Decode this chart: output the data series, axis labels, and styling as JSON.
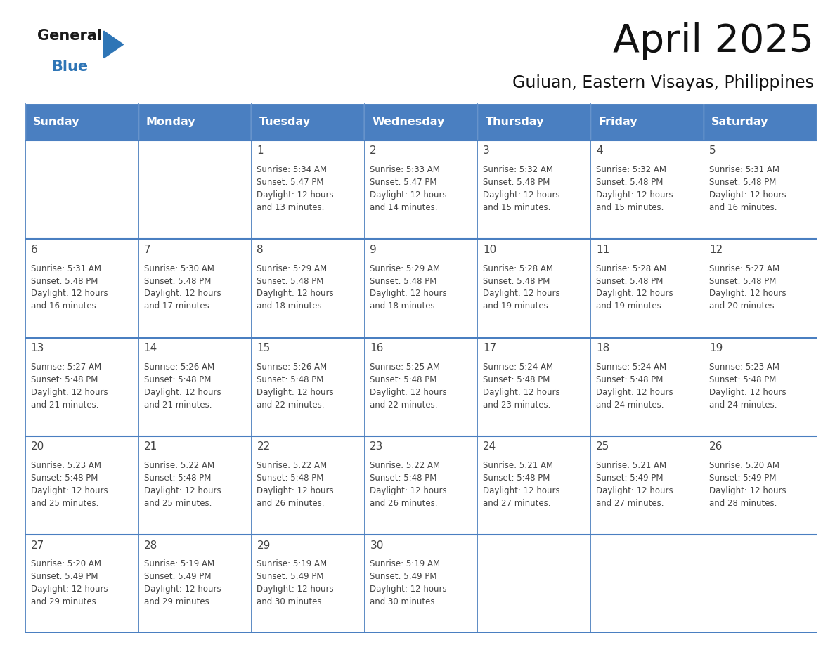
{
  "title": "April 2025",
  "subtitle": "Guiuan, Eastern Visayas, Philippines",
  "days_of_week": [
    "Sunday",
    "Monday",
    "Tuesday",
    "Wednesday",
    "Thursday",
    "Friday",
    "Saturday"
  ],
  "header_bg": "#4a7fc1",
  "header_text": "#FFFFFF",
  "border_color": "#4a7fc1",
  "text_color": "#444444",
  "logo_general_color": "#1a1a1a",
  "logo_blue_color": "#2E75B6",
  "calendar": [
    [
      {
        "day": "",
        "lines": []
      },
      {
        "day": "",
        "lines": []
      },
      {
        "day": "1",
        "lines": [
          "Sunrise: 5:34 AM",
          "Sunset: 5:47 PM",
          "Daylight: 12 hours",
          "and 13 minutes."
        ]
      },
      {
        "day": "2",
        "lines": [
          "Sunrise: 5:33 AM",
          "Sunset: 5:47 PM",
          "Daylight: 12 hours",
          "and 14 minutes."
        ]
      },
      {
        "day": "3",
        "lines": [
          "Sunrise: 5:32 AM",
          "Sunset: 5:48 PM",
          "Daylight: 12 hours",
          "and 15 minutes."
        ]
      },
      {
        "day": "4",
        "lines": [
          "Sunrise: 5:32 AM",
          "Sunset: 5:48 PM",
          "Daylight: 12 hours",
          "and 15 minutes."
        ]
      },
      {
        "day": "5",
        "lines": [
          "Sunrise: 5:31 AM",
          "Sunset: 5:48 PM",
          "Daylight: 12 hours",
          "and 16 minutes."
        ]
      }
    ],
    [
      {
        "day": "6",
        "lines": [
          "Sunrise: 5:31 AM",
          "Sunset: 5:48 PM",
          "Daylight: 12 hours",
          "and 16 minutes."
        ]
      },
      {
        "day": "7",
        "lines": [
          "Sunrise: 5:30 AM",
          "Sunset: 5:48 PM",
          "Daylight: 12 hours",
          "and 17 minutes."
        ]
      },
      {
        "day": "8",
        "lines": [
          "Sunrise: 5:29 AM",
          "Sunset: 5:48 PM",
          "Daylight: 12 hours",
          "and 18 minutes."
        ]
      },
      {
        "day": "9",
        "lines": [
          "Sunrise: 5:29 AM",
          "Sunset: 5:48 PM",
          "Daylight: 12 hours",
          "and 18 minutes."
        ]
      },
      {
        "day": "10",
        "lines": [
          "Sunrise: 5:28 AM",
          "Sunset: 5:48 PM",
          "Daylight: 12 hours",
          "and 19 minutes."
        ]
      },
      {
        "day": "11",
        "lines": [
          "Sunrise: 5:28 AM",
          "Sunset: 5:48 PM",
          "Daylight: 12 hours",
          "and 19 minutes."
        ]
      },
      {
        "day": "12",
        "lines": [
          "Sunrise: 5:27 AM",
          "Sunset: 5:48 PM",
          "Daylight: 12 hours",
          "and 20 minutes."
        ]
      }
    ],
    [
      {
        "day": "13",
        "lines": [
          "Sunrise: 5:27 AM",
          "Sunset: 5:48 PM",
          "Daylight: 12 hours",
          "and 21 minutes."
        ]
      },
      {
        "day": "14",
        "lines": [
          "Sunrise: 5:26 AM",
          "Sunset: 5:48 PM",
          "Daylight: 12 hours",
          "and 21 minutes."
        ]
      },
      {
        "day": "15",
        "lines": [
          "Sunrise: 5:26 AM",
          "Sunset: 5:48 PM",
          "Daylight: 12 hours",
          "and 22 minutes."
        ]
      },
      {
        "day": "16",
        "lines": [
          "Sunrise: 5:25 AM",
          "Sunset: 5:48 PM",
          "Daylight: 12 hours",
          "and 22 minutes."
        ]
      },
      {
        "day": "17",
        "lines": [
          "Sunrise: 5:24 AM",
          "Sunset: 5:48 PM",
          "Daylight: 12 hours",
          "and 23 minutes."
        ]
      },
      {
        "day": "18",
        "lines": [
          "Sunrise: 5:24 AM",
          "Sunset: 5:48 PM",
          "Daylight: 12 hours",
          "and 24 minutes."
        ]
      },
      {
        "day": "19",
        "lines": [
          "Sunrise: 5:23 AM",
          "Sunset: 5:48 PM",
          "Daylight: 12 hours",
          "and 24 minutes."
        ]
      }
    ],
    [
      {
        "day": "20",
        "lines": [
          "Sunrise: 5:23 AM",
          "Sunset: 5:48 PM",
          "Daylight: 12 hours",
          "and 25 minutes."
        ]
      },
      {
        "day": "21",
        "lines": [
          "Sunrise: 5:22 AM",
          "Sunset: 5:48 PM",
          "Daylight: 12 hours",
          "and 25 minutes."
        ]
      },
      {
        "day": "22",
        "lines": [
          "Sunrise: 5:22 AM",
          "Sunset: 5:48 PM",
          "Daylight: 12 hours",
          "and 26 minutes."
        ]
      },
      {
        "day": "23",
        "lines": [
          "Sunrise: 5:22 AM",
          "Sunset: 5:48 PM",
          "Daylight: 12 hours",
          "and 26 minutes."
        ]
      },
      {
        "day": "24",
        "lines": [
          "Sunrise: 5:21 AM",
          "Sunset: 5:48 PM",
          "Daylight: 12 hours",
          "and 27 minutes."
        ]
      },
      {
        "day": "25",
        "lines": [
          "Sunrise: 5:21 AM",
          "Sunset: 5:49 PM",
          "Daylight: 12 hours",
          "and 27 minutes."
        ]
      },
      {
        "day": "26",
        "lines": [
          "Sunrise: 5:20 AM",
          "Sunset: 5:49 PM",
          "Daylight: 12 hours",
          "and 28 minutes."
        ]
      }
    ],
    [
      {
        "day": "27",
        "lines": [
          "Sunrise: 5:20 AM",
          "Sunset: 5:49 PM",
          "Daylight: 12 hours",
          "and 29 minutes."
        ]
      },
      {
        "day": "28",
        "lines": [
          "Sunrise: 5:19 AM",
          "Sunset: 5:49 PM",
          "Daylight: 12 hours",
          "and 29 minutes."
        ]
      },
      {
        "day": "29",
        "lines": [
          "Sunrise: 5:19 AM",
          "Sunset: 5:49 PM",
          "Daylight: 12 hours",
          "and 30 minutes."
        ]
      },
      {
        "day": "30",
        "lines": [
          "Sunrise: 5:19 AM",
          "Sunset: 5:49 PM",
          "Daylight: 12 hours",
          "and 30 minutes."
        ]
      },
      {
        "day": "",
        "lines": []
      },
      {
        "day": "",
        "lines": []
      },
      {
        "day": "",
        "lines": []
      }
    ]
  ],
  "fig_width": 11.88,
  "fig_height": 9.18,
  "dpi": 100
}
